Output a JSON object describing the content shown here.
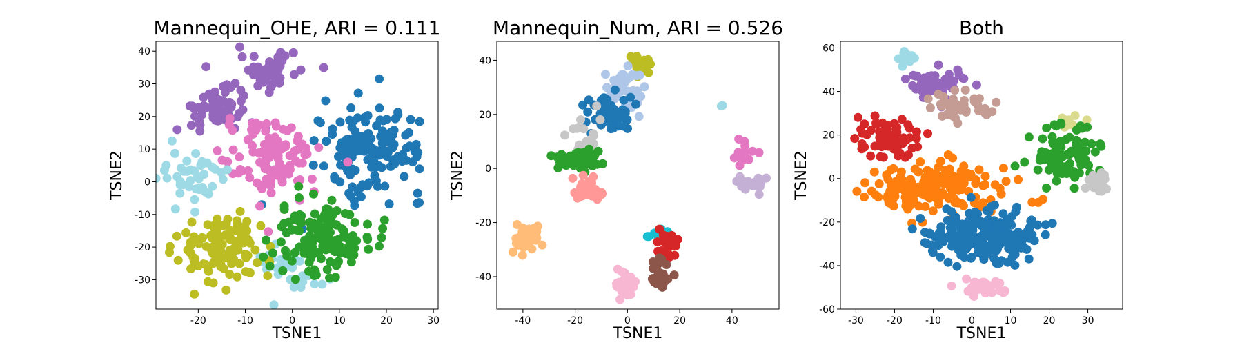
{
  "figure": {
    "background": "#ffffff"
  },
  "chart_data": [
    {
      "type": "scatter",
      "title": "Mannequin_OHE, ARI = 0.111",
      "xlabel": "TSNE1",
      "ylabel": "TSNE2",
      "xlim": [
        -29,
        31
      ],
      "ylim": [
        -39,
        43
      ],
      "xticks": [
        -20,
        -10,
        0,
        10,
        20,
        30
      ],
      "yticks": [
        -30,
        -20,
        -10,
        0,
        10,
        20,
        30,
        40
      ],
      "grid": false,
      "legend": "none",
      "series": [
        {
          "color": "#9467bd",
          "clusters": [
            {
              "cx": -5,
              "cy": 34,
              "sx": 3,
              "sy": 2.5,
              "n": 55
            },
            {
              "cx": -16,
              "cy": 22,
              "sx": 4.5,
              "sy": 4,
              "n": 65
            }
          ]
        },
        {
          "color": "#1f77b4",
          "clusters": [
            {
              "cx": 17,
              "cy": 10,
              "sx": 5.5,
              "sy": 7,
              "n": 150
            }
          ]
        },
        {
          "color": "#e377c2",
          "clusters": [
            {
              "cx": -4,
              "cy": 7,
              "sx": 5,
              "sy": 5.5,
              "n": 120
            }
          ]
        },
        {
          "color": "#9edae5",
          "clusters": [
            {
              "cx": -21,
              "cy": 1,
              "sx": 3.5,
              "sy": 5,
              "n": 45
            },
            {
              "cx": 0,
              "cy": -27,
              "sx": 4,
              "sy": 5,
              "n": 35
            }
          ]
        },
        {
          "color": "#bcbd22",
          "clusters": [
            {
              "cx": -15,
              "cy": -20,
              "sx": 4.5,
              "sy": 5.5,
              "n": 120
            }
          ]
        },
        {
          "color": "#2ca02c",
          "clusters": [
            {
              "cx": 6,
              "cy": -17,
              "sx": 5,
              "sy": 5.5,
              "n": 140
            }
          ]
        }
      ]
    },
    {
      "type": "scatter",
      "title": "Mannequin_Num, ARI = 0.526",
      "xlabel": "TSNE1",
      "ylabel": "TSNE2",
      "xlim": [
        -50,
        58
      ],
      "ylim": [
        -52,
        47
      ],
      "xticks": [
        -40,
        -20,
        0,
        20,
        40
      ],
      "yticks": [
        -40,
        -20,
        0,
        20,
        40
      ],
      "grid": false,
      "legend": "none",
      "series": [
        {
          "color": "#bcbd22",
          "clusters": [
            {
              "cx": 5,
              "cy": 38,
              "sx": 2,
              "sy": 2,
              "n": 22
            }
          ]
        },
        {
          "color": "#aec7e8",
          "clusters": [
            {
              "cx": -1,
              "cy": 30,
              "sx": 3.5,
              "sy": 4,
              "n": 45
            }
          ]
        },
        {
          "color": "#1f77b4",
          "clusters": [
            {
              "cx": -7,
              "cy": 20,
              "sx": 4.5,
              "sy": 3.5,
              "n": 60
            }
          ]
        },
        {
          "color": "#c7c7c7",
          "clusters": [
            {
              "cx": -15,
              "cy": 13,
              "sx": 4,
              "sy": 3.5,
              "n": 18
            }
          ]
        },
        {
          "color": "#2ca02c",
          "clusters": [
            {
              "cx": -20,
              "cy": 3,
              "sx": 5,
              "sy": 2,
              "n": 55
            }
          ]
        },
        {
          "color": "#ff9896",
          "clusters": [
            {
              "cx": -15,
              "cy": -8,
              "sx": 3,
              "sy": 1.8,
              "n": 40
            }
          ]
        },
        {
          "color": "#ffbb78",
          "clusters": [
            {
              "cx": -39,
              "cy": -26,
              "sx": 3,
              "sy": 2.2,
              "n": 45
            }
          ]
        },
        {
          "color": "#17becf",
          "clusters": [
            {
              "cx": 12,
              "cy": -24,
              "sx": 1.5,
              "sy": 1,
              "n": 12
            }
          ]
        },
        {
          "color": "#d62728",
          "clusters": [
            {
              "cx": 15,
              "cy": -29,
              "sx": 2,
              "sy": 3,
              "n": 30
            }
          ]
        },
        {
          "color": "#8c564b",
          "clusters": [
            {
              "cx": 13,
              "cy": -39,
              "sx": 1.8,
              "sy": 3,
              "n": 30
            }
          ]
        },
        {
          "color": "#f7b6d2",
          "clusters": [
            {
              "cx": -1,
              "cy": -43,
              "sx": 2,
              "sy": 2.5,
              "n": 28
            }
          ]
        },
        {
          "color": "#9edae5",
          "clusters": [
            {
              "cx": 36,
              "cy": 23,
              "sx": 0.3,
              "sy": 0.3,
              "n": 2
            }
          ]
        },
        {
          "color": "#e377c2",
          "clusters": [
            {
              "cx": 44,
              "cy": 6,
              "sx": 2.5,
              "sy": 2.5,
              "n": 14
            }
          ]
        },
        {
          "color": "#c5b0d5",
          "clusters": [
            {
              "cx": 48,
              "cy": -5,
              "sx": 2.5,
              "sy": 2,
              "n": 22
            }
          ]
        }
      ]
    },
    {
      "type": "scatter",
      "title": "Both",
      "xlabel": "TSNE1",
      "ylabel": "TSNE2",
      "xlim": [
        -34,
        39
      ],
      "ylim": [
        -60,
        63
      ],
      "xticks": [
        -30,
        -20,
        -10,
        0,
        10,
        20,
        30
      ],
      "yticks": [
        -60,
        -40,
        -20,
        0,
        20,
        40,
        60
      ],
      "grid": false,
      "legend": "none",
      "series": [
        {
          "color": "#9edae5",
          "clusters": [
            {
              "cx": -17,
              "cy": 55,
              "sx": 1.5,
              "sy": 1.2,
              "n": 15
            }
          ]
        },
        {
          "color": "#9467bd",
          "clusters": [
            {
              "cx": -9,
              "cy": 44,
              "sx": 3.5,
              "sy": 3.5,
              "n": 55
            }
          ]
        },
        {
          "color": "#c49c94",
          "clusters": [
            {
              "cx": -3,
              "cy": 33,
              "sx": 4,
              "sy": 3.5,
              "n": 40
            }
          ]
        },
        {
          "color": "#d62728",
          "clusters": [
            {
              "cx": -22,
              "cy": 20,
              "sx": 4,
              "sy": 5,
              "n": 70
            }
          ]
        },
        {
          "color": "#dbdb8d",
          "clusters": [
            {
              "cx": 25,
              "cy": 26,
              "sx": 2,
              "sy": 1.5,
              "n": 18
            }
          ]
        },
        {
          "color": "#2ca02c",
          "clusters": [
            {
              "cx": 24,
              "cy": 10,
              "sx": 5,
              "sy": 7,
              "n": 90
            }
          ]
        },
        {
          "color": "#c7c7c7",
          "clusters": [
            {
              "cx": 33,
              "cy": -2,
              "sx": 2.2,
              "sy": 2.5,
              "n": 28
            }
          ]
        },
        {
          "color": "#ff7f0e",
          "clusters": [
            {
              "cx": -8,
              "cy": -4,
              "sx": 9,
              "sy": 5.5,
              "n": 170
            }
          ]
        },
        {
          "color": "#1f77b4",
          "clusters": [
            {
              "cx": 3,
              "cy": -27,
              "sx": 7,
              "sy": 5.5,
              "n": 220
            }
          ]
        },
        {
          "color": "#f7b6d2",
          "clusters": [
            {
              "cx": 3,
              "cy": -50,
              "sx": 3,
              "sy": 2,
              "n": 35
            }
          ]
        }
      ]
    }
  ]
}
